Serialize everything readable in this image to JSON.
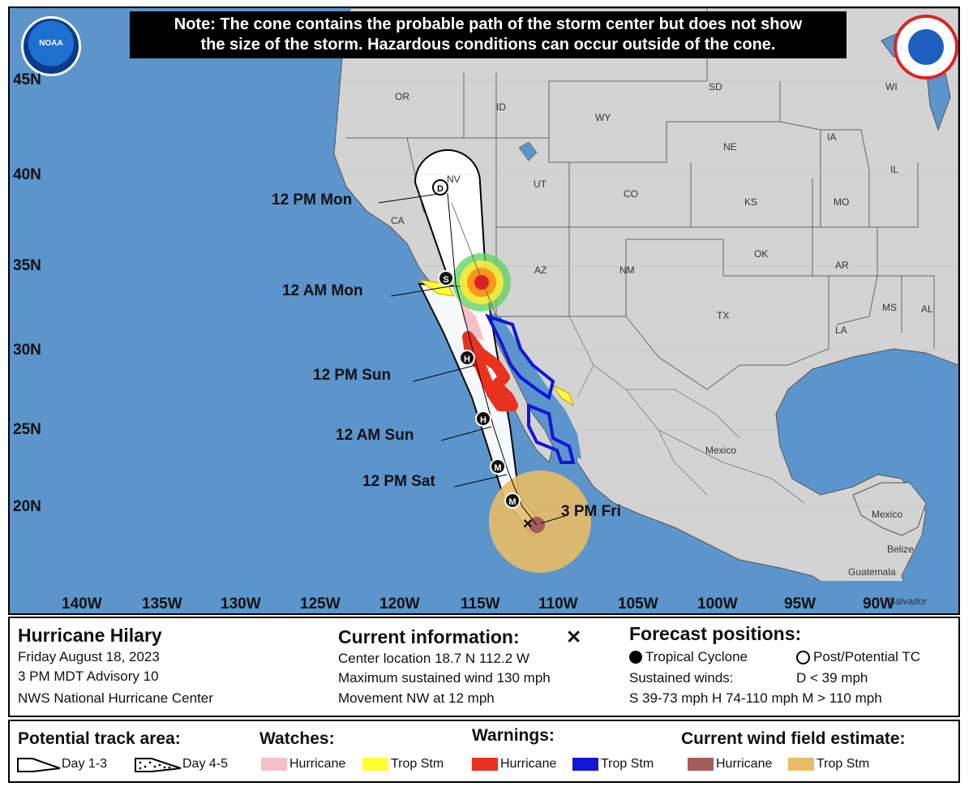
{
  "note": {
    "line1": "Note: The cone contains the probable path of the storm center but does not show",
    "line2": "the size of the storm. Hazardous conditions can occur outside of the cone."
  },
  "logos": {
    "noaa_text": "NOAA"
  },
  "latitudes": [
    "45N",
    "40N",
    "35N",
    "30N",
    "25N",
    "20N"
  ],
  "longitudes": [
    "140W",
    "135W",
    "130W",
    "125W",
    "120W",
    "115W",
    "110W",
    "105W",
    "100W",
    "95W",
    "90W"
  ],
  "places": [
    "OR",
    "ID",
    "WY",
    "SD",
    "WI",
    "NE",
    "IA",
    "IL",
    "NV",
    "UT",
    "CO",
    "CA",
    "KS",
    "MO",
    "AZ",
    "NM",
    "OK",
    "AR",
    "TX",
    "MS",
    "AL",
    "LA",
    "Mexico",
    "Mexico",
    "Belize",
    "Guatemala",
    "Salvador"
  ],
  "forecast_points": [
    {
      "label": "12 PM Mon",
      "symbol": "D",
      "type": "open"
    },
    {
      "label": "12 AM Mon",
      "symbol": "S",
      "type": "solid"
    },
    {
      "label": "12 PM Sun",
      "symbol": "H",
      "type": "solid"
    },
    {
      "label": "12 AM Sun",
      "symbol": "H",
      "type": "solid"
    },
    {
      "label": "12 PM Sat",
      "symbol": "M",
      "type": "solid"
    },
    {
      "label": "",
      "symbol": "M",
      "type": "solid"
    },
    {
      "label": "3 PM Fri",
      "symbol": "×",
      "type": "current"
    }
  ],
  "storm": {
    "name": "Hurricane Hilary",
    "date": "Friday August 18, 2023",
    "advisory": "3 PM MDT Advisory 10",
    "center": "NWS National Hurricane Center"
  },
  "current_info": {
    "title": "Current information:",
    "symbol": "✕",
    "location": "Center location 18.7 N 112.2 W",
    "wind": "Maximum sustained wind 130 mph",
    "movement": "Movement NW at 12 mph"
  },
  "forecast_positions": {
    "title": "Forecast positions:",
    "tropical": "Tropical Cyclone",
    "post": "Post/Potential TC",
    "winds_label": "Sustained winds:",
    "d": "D < 39 mph",
    "smh": "S 39-73 mph  H 74-110 mph  M > 110 mph"
  },
  "legend": {
    "track_title": "Potential track area:",
    "day13": "Day 1-3",
    "day45": "Day 4-5",
    "watches_title": "Watches:",
    "warnings_title": "Warnings:",
    "wind_title": "Current wind field estimate:",
    "watch_hurricane": "Hurricane",
    "watch_tropstm": "Trop Stm",
    "warn_hurricane": "Hurricane",
    "warn_tropstm": "Trop Stm",
    "wind_hurricane": "Hurricane",
    "wind_tropstm": "Trop Stm"
  },
  "colors": {
    "ocean": "#5b95cc",
    "land": "#d3d3d3",
    "cone": "#ffffff",
    "watch_hurricane": "#f4c0c6",
    "watch_tropstm": "#ffff33",
    "warn_hurricane": "#e8321f",
    "warn_tropstm": "#1414d8",
    "wind_hurricane": "#a65b5b",
    "wind_tropstm": "#e8bb66"
  }
}
